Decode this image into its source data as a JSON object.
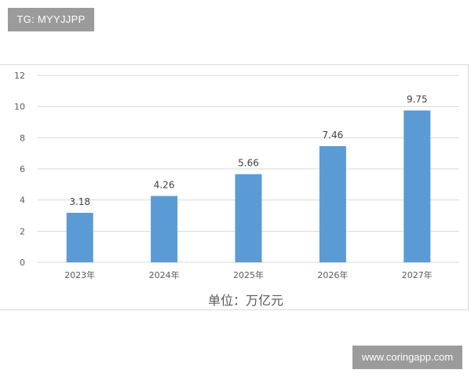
{
  "watermarks": {
    "top_left": "TG: MYYJJPP",
    "bottom_right": "www.coringapp.com"
  },
  "chart_data": {
    "type": "bar",
    "categories": [
      "2023年",
      "2024年",
      "2025年",
      "2026年",
      "2027年"
    ],
    "values": [
      3.18,
      4.26,
      5.66,
      7.46,
      9.75
    ],
    "data_labels": [
      "3.18",
      "4.26",
      "5.66",
      "7.46",
      "9.75"
    ],
    "title": "",
    "xlabel": "单位：万亿元",
    "ylabel": "",
    "ylim": [
      0,
      12
    ],
    "yticks": [
      "0",
      "2",
      "4",
      "6",
      "8",
      "10",
      "12"
    ],
    "grid": true,
    "legend": "none",
    "bar_color": "#5b9bd5",
    "grid_color": "#d9d9d9"
  }
}
